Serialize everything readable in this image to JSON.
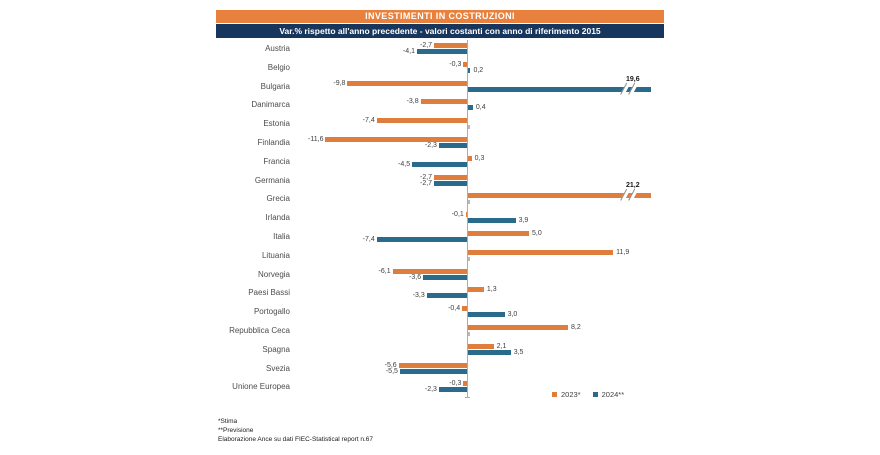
{
  "title": "INVESTIMENTI IN COSTRUZIONI",
  "subtitle": "Var.% rispetto all'anno precedente - valori costanti con anno di riferimento 2015",
  "legend": {
    "s2023": "2023*",
    "s2024": "2024**"
  },
  "footnotes": [
    "*Stima",
    "**Previsione",
    "Elaborazione Ance su dati FIEC-Statistical report n.67"
  ],
  "colors": {
    "title_bg": "#E8813E",
    "subtitle_bg": "#17365D",
    "bar_2023": "#DF7E3C",
    "bar_2024": "#2A6B8C",
    "axis": "#ACACAC",
    "value_label": "#404040"
  },
  "chart_data": {
    "type": "bar",
    "orientation": "horizontal",
    "title": "INVESTIMENTI IN COSTRUZIONI",
    "subtitle": "Var.% rispetto all'anno precedente - valori costanti con anno di riferimento 2015",
    "xlabel": "Var.%",
    "ylabel": "",
    "grid": false,
    "legend_position": "bottom-right",
    "axis_break_note": "Bars for Bulgaria 2024 (19,6) and Grecia 2023 (21,2) are truncated with break marks",
    "categories": [
      "Austria",
      "Belgio",
      "Bulgaria",
      "Danimarca",
      "Estonia",
      "Finlandia",
      "Francia",
      "Germania",
      "Grecia",
      "Irlanda",
      "Italia",
      "Lituania",
      "Norvegia",
      "Paesi Bassi",
      "Portogallo",
      "Repubblica Ceca",
      "Spagna",
      "Svezia",
      "Unione Europea"
    ],
    "series": [
      {
        "name": "2023*",
        "color": "#DF7E3C",
        "values": [
          -2.7,
          -0.3,
          -9.8,
          -3.8,
          -7.4,
          -11.6,
          0.3,
          -2.7,
          21.2,
          -0.1,
          5.0,
          11.9,
          -6.1,
          1.3,
          -0.4,
          8.2,
          2.1,
          -5.6,
          -0.3
        ]
      },
      {
        "name": "2024**",
        "color": "#2A6B8C",
        "values": [
          -4.1,
          0.2,
          19.6,
          0.4,
          null,
          -2.3,
          -4.5,
          -2.7,
          null,
          3.9,
          -7.4,
          null,
          -3.6,
          -3.3,
          3.0,
          null,
          3.5,
          -5.5,
          -2.3
        ]
      }
    ],
    "rows": [
      {
        "label": "Austria",
        "v2023": -2.7,
        "l2023": "-2,7",
        "v2024": -4.1,
        "l2024": "-4,1"
      },
      {
        "label": "Belgio",
        "v2023": -0.3,
        "l2023": "-0,3",
        "v2024": 0.2,
        "l2024": "0,2"
      },
      {
        "label": "Bulgaria",
        "v2023": -9.8,
        "l2023": "-9,8",
        "v2024": 19.6,
        "l2024": "19,6",
        "break2024": true
      },
      {
        "label": "Danimarca",
        "v2023": -3.8,
        "l2023": "-3,8",
        "v2024": 0.4,
        "l2024": "0,4"
      },
      {
        "label": "Estonia",
        "v2023": -7.4,
        "l2023": "-7,4",
        "v2024": null,
        "l2024": ""
      },
      {
        "label": "Finlandia",
        "v2023": -11.6,
        "l2023": "-11,6",
        "v2024": -2.3,
        "l2024": "-2,3"
      },
      {
        "label": "Francia",
        "v2023": 0.3,
        "l2023": "0,3",
        "v2024": -4.5,
        "l2024": "-4,5"
      },
      {
        "label": "Germania",
        "v2023": -2.7,
        "l2023": "-2,7",
        "v2024": -2.7,
        "l2024": "-2,7"
      },
      {
        "label": "Grecia",
        "v2023": 21.2,
        "l2023": "21,2",
        "v2024": null,
        "l2024": "",
        "break2023": true
      },
      {
        "label": "Irlanda",
        "v2023": -0.1,
        "l2023": "-0,1",
        "v2024": 3.9,
        "l2024": "3,9"
      },
      {
        "label": "Italia",
        "v2023": 5.0,
        "l2023": "5,0",
        "v2024": -7.4,
        "l2024": "-7,4"
      },
      {
        "label": "Lituania",
        "v2023": 11.9,
        "l2023": "11,9",
        "v2024": null,
        "l2024": ""
      },
      {
        "label": "Norvegia",
        "v2023": -6.1,
        "l2023": "-6,1",
        "v2024": -3.6,
        "l2024": "-3,6"
      },
      {
        "label": "Paesi Bassi",
        "v2023": 1.3,
        "l2023": "1,3",
        "v2024": -3.3,
        "l2024": "-3,3"
      },
      {
        "label": "Portogallo",
        "v2023": -0.4,
        "l2023": "-0,4",
        "v2024": 3.0,
        "l2024": "3,0"
      },
      {
        "label": "Repubblica Ceca",
        "v2023": 8.2,
        "l2023": "8,2",
        "v2024": null,
        "l2024": ""
      },
      {
        "label": "Spagna",
        "v2023": 2.1,
        "l2023": "2,1",
        "v2024": 3.5,
        "l2024": "3,5"
      },
      {
        "label": "Svezia",
        "v2023": -5.6,
        "l2023": "-5,6",
        "v2024": -5.5,
        "l2024": "-5,5"
      },
      {
        "label": "Unione Europea",
        "v2023": -0.3,
        "l2023": "-0,3",
        "v2024": -2.3,
        "l2024": "-2,3"
      }
    ]
  }
}
